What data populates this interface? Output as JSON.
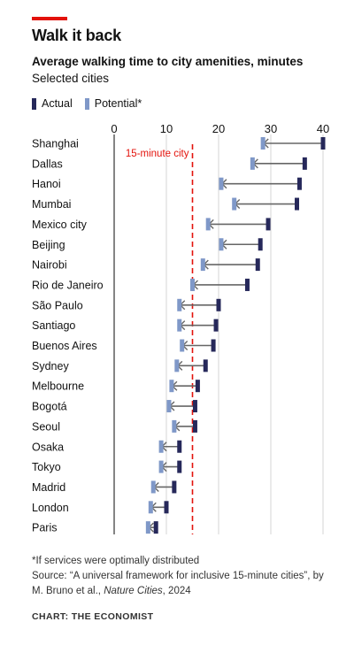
{
  "header": {
    "title": "Walk it back",
    "subtitle": "Average walking time to city amenities, minutes",
    "subtitle2": "Selected cities"
  },
  "legend": {
    "actual_label": "Actual",
    "potential_label": "Potential*"
  },
  "colors": {
    "accent": "#e3120b",
    "actual": "#26285a",
    "potential": "#7f98c8",
    "connector": "#666666",
    "reference": "#e3120b"
  },
  "chart_data": {
    "type": "dumbbell",
    "xlim": [
      0,
      40
    ],
    "xticks": [
      "0",
      "10",
      "20",
      "30",
      "40"
    ],
    "reference_line": {
      "value": 15,
      "label": "15-minute city"
    },
    "categories": [
      "Shanghai",
      "Dallas",
      "Hanoi",
      "Mumbai",
      "Mexico city",
      "Beijing",
      "Nairobi",
      "Rio de Janeiro",
      "São Paulo",
      "Santiago",
      "Buenos Aires",
      "Sydney",
      "Melbourne",
      "Bogotá",
      "Seoul",
      "Osaka",
      "Tokyo",
      "Madrid",
      "London",
      "Paris"
    ],
    "series": [
      {
        "name": "Actual",
        "values": [
          40.0,
          36.5,
          35.5,
          35.0,
          29.5,
          28.0,
          27.5,
          25.5,
          20.0,
          19.5,
          19.0,
          17.5,
          16.0,
          15.5,
          15.5,
          12.5,
          12.5,
          11.5,
          10.0,
          8.0
        ]
      },
      {
        "name": "Potential*",
        "values": [
          28.5,
          26.5,
          20.5,
          23.0,
          18.0,
          20.5,
          17.0,
          15.0,
          12.5,
          12.5,
          13.0,
          12.0,
          11.0,
          10.5,
          11.5,
          9.0,
          9.0,
          7.5,
          7.0,
          6.5
        ]
      }
    ]
  },
  "notes": {
    "footnote": "*If services were optimally distributed",
    "source_prefix": "Source: “A universal framework for inclusive 15-minute cities”, by M. Bruno et al., ",
    "source_journal": "Nature Cities",
    "source_suffix": ", 2024",
    "credit": "CHART: THE ECONOMIST"
  }
}
